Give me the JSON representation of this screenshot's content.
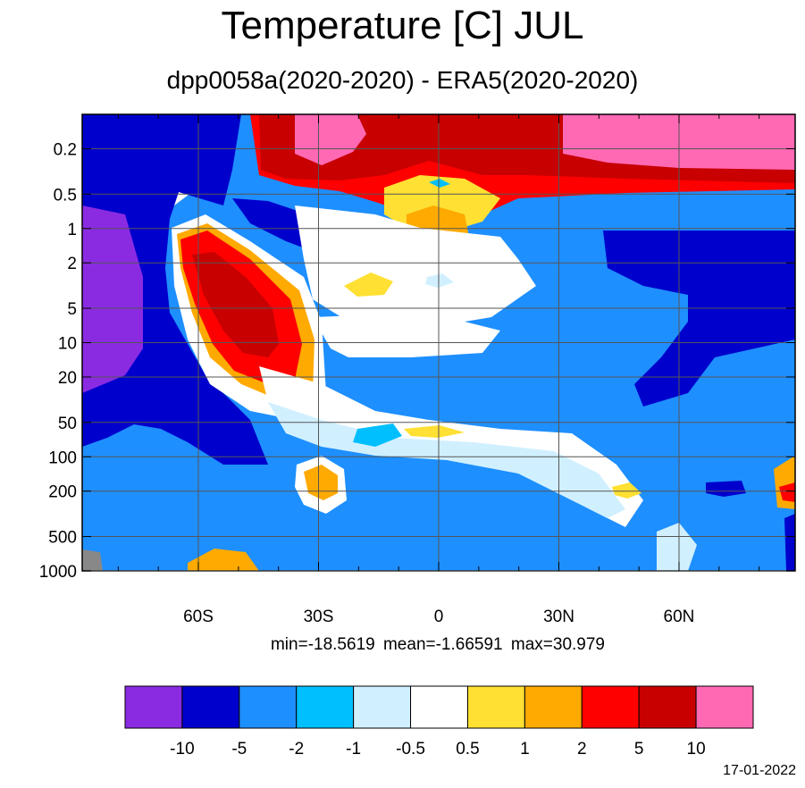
{
  "page": {
    "title": "Temperature [C] JUL",
    "subtitle": "dpp0058a(2020-2020) - ERA5(2020-2020)",
    "stats": "min=-18.5619   mean=-1.66591   max=30.979",
    "date": "17-01-2022"
  },
  "chart_data": {
    "type": "heatmap",
    "title": "Temperature [C] JUL",
    "subtitle": "dpp0058a(2020-2020) - ERA5(2020-2020)",
    "x_ticks": [
      {
        "label": "60S",
        "value": -60
      },
      {
        "label": "30S",
        "value": -30
      },
      {
        "label": "0",
        "value": 0
      },
      {
        "label": "30N",
        "value": 30
      },
      {
        "label": "60N",
        "value": 60
      }
    ],
    "xlim": [
      -89,
      89
    ],
    "y_ticks": [
      {
        "label": "0.2",
        "value": 0.2
      },
      {
        "label": "0.5",
        "value": 0.5
      },
      {
        "label": "1",
        "value": 1
      },
      {
        "label": "2",
        "value": 2
      },
      {
        "label": "5",
        "value": 5
      },
      {
        "label": "10",
        "value": 10
      },
      {
        "label": "20",
        "value": 20
      },
      {
        "label": "50",
        "value": 50
      },
      {
        "label": "100",
        "value": 100
      },
      {
        "label": "200",
        "value": 200
      },
      {
        "label": "500",
        "value": 500
      },
      {
        "label": "1000",
        "value": 1000
      }
    ],
    "ylim": [
      0.1,
      1000
    ],
    "y_scale": "log",
    "y_reversed": true,
    "grid": true,
    "colorbar": {
      "levels": [
        "-10",
        "-5",
        "-2",
        "-1",
        "-0.5",
        "0.5",
        "1",
        "2",
        "5",
        "10"
      ],
      "colors": [
        "#8a2be2",
        "#0000cd",
        "#1e8fff",
        "#00bfff",
        "#d1f0ff",
        "#ffffff",
        "#ffe033",
        "#ffaa00",
        "#ff0000",
        "#c80000",
        "#ff69b4"
      ]
    },
    "min": -18.5619,
    "mean": -1.66591,
    "max": 30.979
  }
}
